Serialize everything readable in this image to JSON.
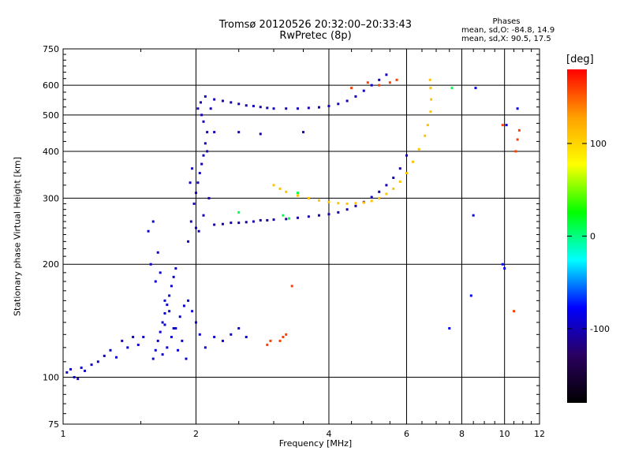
{
  "chart_data": {
    "type": "scatter",
    "title": "Tromsø 20120526 20:32:00–20:33:43",
    "subtitle": "RwPretec (8p)",
    "xlabel": "Frequency [MHz]",
    "ylabel": "Stationary phase Virtual Height [km]",
    "x_scale": "log",
    "y_scale": "log",
    "xlim": [
      1,
      12
    ],
    "ylim": [
      75,
      750
    ],
    "x_ticks": [
      1,
      2,
      4,
      6,
      8,
      10,
      12
    ],
    "y_ticks": [
      75,
      100,
      200,
      300,
      400,
      500,
      600,
      750
    ],
    "grid": true,
    "phases": {
      "title": "Phases",
      "line1": "mean, sd,O: -84.8, 14.9",
      "line2": "mean, sd,X:  90.5, 17.5"
    },
    "colorbar": {
      "label": "[deg]",
      "ticks": [
        100,
        0,
        -100
      ],
      "range": [
        -180,
        180
      ],
      "colors": [
        "#000000",
        "#2a0060",
        "#0000ff",
        "#00ffff",
        "#00ff00",
        "#ffff00",
        "#ffa000",
        "#ff0000"
      ]
    },
    "series": [
      {
        "phase": -95,
        "points": [
          [
            1.02,
            103
          ],
          [
            1.04,
            105
          ],
          [
            1.06,
            100
          ],
          [
            1.08,
            99
          ],
          [
            1.1,
            106
          ],
          [
            1.12,
            104
          ],
          [
            1.16,
            108
          ],
          [
            1.2,
            110
          ],
          [
            1.24,
            114
          ],
          [
            1.28,
            118
          ],
          [
            1.32,
            113
          ],
          [
            1.36,
            125
          ],
          [
            1.4,
            120
          ],
          [
            1.44,
            128
          ],
          [
            1.48,
            122
          ],
          [
            1.52,
            128
          ]
        ]
      },
      {
        "phase": -92,
        "points": [
          [
            1.6,
            112
          ],
          [
            1.62,
            118
          ],
          [
            1.64,
            125
          ],
          [
            1.66,
            132
          ],
          [
            1.68,
            140
          ],
          [
            1.7,
            148
          ],
          [
            1.72,
            156
          ],
          [
            1.74,
            165
          ],
          [
            1.76,
            175
          ],
          [
            1.78,
            185
          ],
          [
            1.8,
            195
          ],
          [
            1.68,
            115
          ],
          [
            1.72,
            120
          ],
          [
            1.76,
            128
          ],
          [
            1.8,
            135
          ],
          [
            1.84,
            145
          ],
          [
            1.88,
            155
          ],
          [
            1.92,
            160
          ],
          [
            1.96,
            150
          ],
          [
            2.0,
            140
          ],
          [
            2.04,
            130
          ],
          [
            1.62,
            180
          ],
          [
            1.66,
            190
          ],
          [
            1.7,
            160
          ],
          [
            1.74,
            150
          ],
          [
            1.78,
            135
          ],
          [
            1.82,
            118
          ],
          [
            1.86,
            125
          ],
          [
            1.9,
            112
          ],
          [
            2.1,
            120
          ],
          [
            2.2,
            128
          ],
          [
            2.3,
            125
          ],
          [
            2.4,
            130
          ],
          [
            2.5,
            135
          ],
          [
            2.6,
            128
          ],
          [
            1.56,
            245
          ],
          [
            1.6,
            260
          ],
          [
            1.64,
            215
          ],
          [
            1.58,
            200
          ],
          [
            1.7,
            138
          ]
        ]
      },
      {
        "phase": -100,
        "points": [
          [
            1.92,
            230
          ],
          [
            1.95,
            260
          ],
          [
            1.98,
            290
          ],
          [
            2.0,
            310
          ],
          [
            2.02,
            330
          ],
          [
            2.04,
            350
          ],
          [
            2.06,
            370
          ],
          [
            2.08,
            390
          ],
          [
            2.1,
            420
          ],
          [
            2.12,
            450
          ],
          [
            2.08,
            480
          ],
          [
            2.06,
            500
          ],
          [
            2.02,
            520
          ],
          [
            2.05,
            540
          ],
          [
            2.1,
            560
          ],
          [
            1.96,
            360
          ],
          [
            1.94,
            330
          ],
          [
            2.0,
            250
          ],
          [
            2.03,
            245
          ],
          [
            2.08,
            270
          ],
          [
            2.14,
            300
          ],
          [
            2.12,
            400
          ],
          [
            2.16,
            520
          ],
          [
            2.2,
            550
          ]
        ]
      },
      {
        "phase": -105,
        "points": [
          [
            2.2,
            255
          ],
          [
            2.3,
            256
          ],
          [
            2.4,
            258
          ],
          [
            2.5,
            258
          ],
          [
            2.6,
            259
          ],
          [
            2.7,
            260
          ],
          [
            2.8,
            262
          ],
          [
            2.9,
            262
          ],
          [
            3.0,
            263
          ],
          [
            3.2,
            264
          ],
          [
            3.4,
            266
          ],
          [
            3.6,
            268
          ],
          [
            3.8,
            270
          ],
          [
            4.0,
            272
          ],
          [
            4.2,
            275
          ],
          [
            4.4,
            280
          ],
          [
            4.6,
            286
          ],
          [
            4.8,
            293
          ],
          [
            5.0,
            302
          ],
          [
            5.2,
            312
          ],
          [
            5.4,
            325
          ],
          [
            5.6,
            340
          ],
          [
            5.8,
            360
          ],
          [
            6.0,
            390
          ]
        ]
      },
      {
        "phase": -100,
        "points": [
          [
            2.3,
            545
          ],
          [
            2.4,
            540
          ],
          [
            2.5,
            535
          ],
          [
            2.6,
            530
          ],
          [
            2.7,
            528
          ],
          [
            2.8,
            525
          ],
          [
            2.9,
            522
          ],
          [
            3.0,
            520
          ],
          [
            3.2,
            520
          ],
          [
            3.4,
            520
          ],
          [
            3.6,
            522
          ],
          [
            3.8,
            524
          ],
          [
            4.0,
            528
          ],
          [
            4.2,
            535
          ],
          [
            4.4,
            545
          ],
          [
            4.6,
            560
          ],
          [
            4.8,
            580
          ],
          [
            5.0,
            600
          ],
          [
            5.2,
            620
          ],
          [
            5.4,
            640
          ],
          [
            2.2,
            450
          ],
          [
            2.5,
            450
          ],
          [
            2.8,
            445
          ],
          [
            3.5,
            450
          ]
        ]
      },
      {
        "phase": 110,
        "points": [
          [
            3.0,
            325
          ],
          [
            3.1,
            318
          ],
          [
            3.2,
            312
          ],
          [
            3.4,
            305
          ],
          [
            3.6,
            300
          ],
          [
            3.8,
            296
          ],
          [
            4.0,
            293
          ],
          [
            4.2,
            291
          ],
          [
            4.4,
            290
          ],
          [
            4.6,
            291
          ],
          [
            4.8,
            292
          ],
          [
            5.0,
            295
          ],
          [
            5.2,
            300
          ],
          [
            5.4,
            308
          ],
          [
            5.6,
            318
          ],
          [
            5.8,
            332
          ],
          [
            6.0,
            350
          ],
          [
            6.2,
            375
          ],
          [
            6.4,
            405
          ],
          [
            6.6,
            440
          ],
          [
            6.7,
            470
          ],
          [
            6.8,
            510
          ],
          [
            6.82,
            550
          ],
          [
            6.8,
            590
          ],
          [
            6.78,
            620
          ]
        ]
      },
      {
        "phase": 160,
        "points": [
          [
            5.2,
            600
          ],
          [
            5.5,
            610
          ],
          [
            5.7,
            620
          ],
          [
            4.5,
            590
          ],
          [
            4.9,
            610
          ],
          [
            3.1,
            125
          ],
          [
            3.15,
            128
          ],
          [
            3.2,
            130
          ],
          [
            2.95,
            125
          ],
          [
            2.9,
            122
          ],
          [
            3.3,
            175
          ],
          [
            10.5,
            150
          ],
          [
            10.6,
            400
          ],
          [
            10.7,
            430
          ],
          [
            10.8,
            455
          ],
          [
            9.9,
            470
          ]
        ]
      },
      {
        "phase": 10,
        "points": [
          [
            3.15,
            270
          ],
          [
            3.25,
            265
          ],
          [
            2.5,
            275
          ],
          [
            3.4,
            310
          ],
          [
            7.6,
            590
          ]
        ]
      },
      {
        "phase": -80,
        "points": [
          [
            7.5,
            135
          ],
          [
            8.4,
            165
          ],
          [
            8.5,
            270
          ],
          [
            8.6,
            590
          ],
          [
            9.9,
            200
          ],
          [
            10.0,
            195
          ],
          [
            10.1,
            470
          ],
          [
            10.7,
            520
          ]
        ]
      }
    ]
  }
}
